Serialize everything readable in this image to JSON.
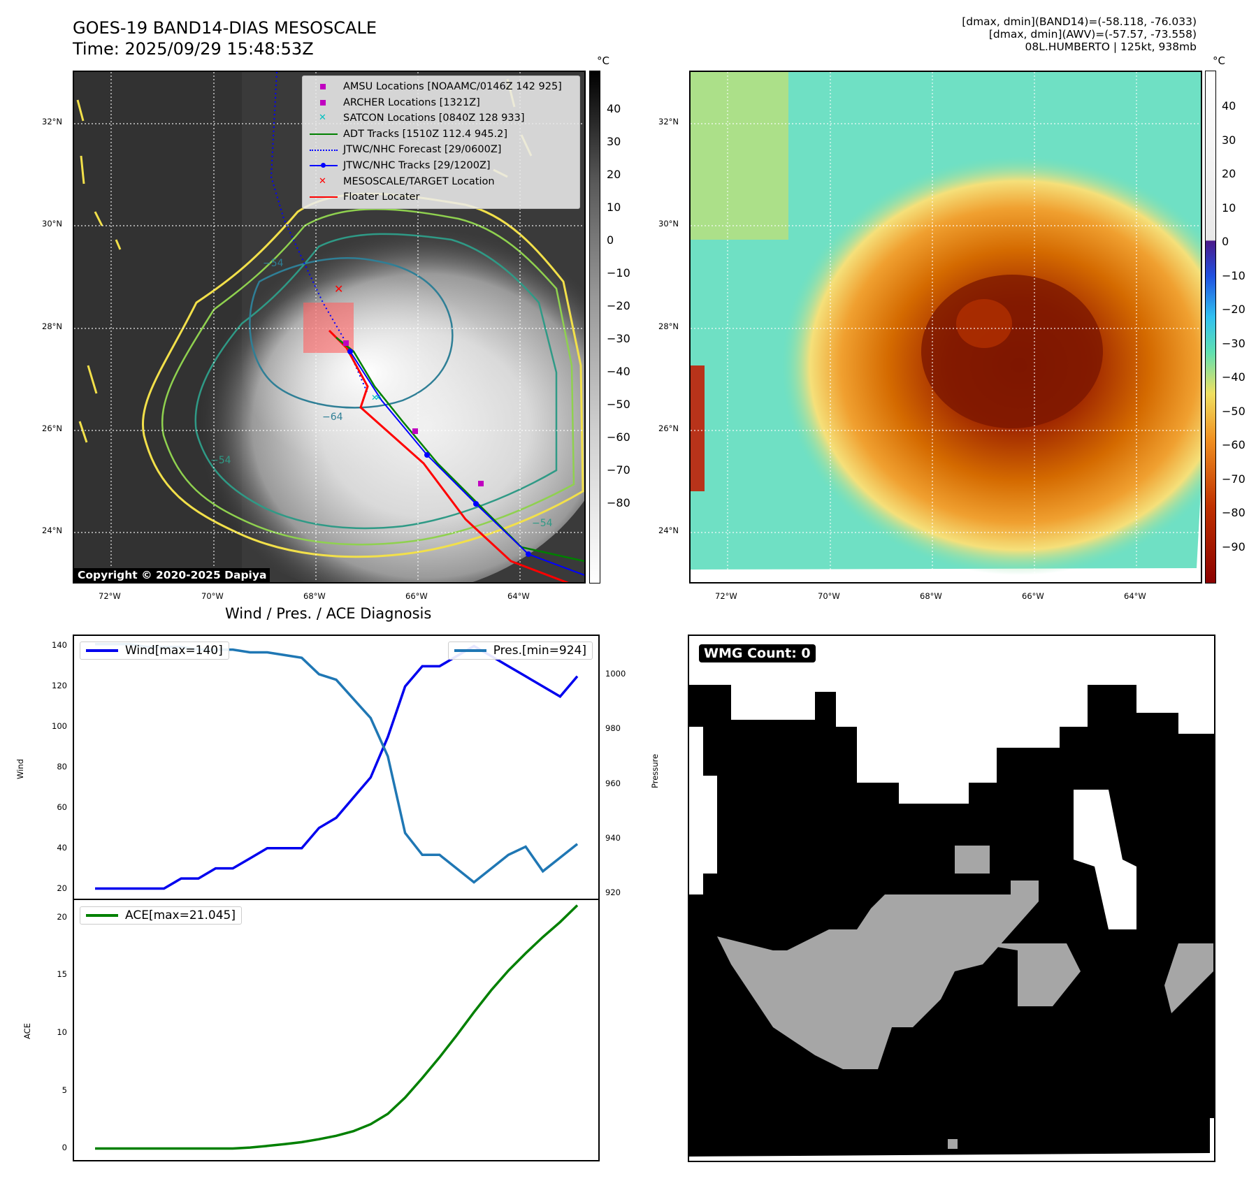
{
  "header": {
    "title_line1": "GOES-19 BAND14-DIAS MESOSCALE",
    "title_line2": "Time: 2025/09/29 15:48:53Z",
    "info_line1": "[dmax, dmin](BAND14)=(-58.118, -76.033)",
    "info_line2": "[dmax, dmin](AWV)=(-57.57, -73.558)",
    "info_line3": "08L.HUMBERTO | 125kt, 938mb"
  },
  "map_axes": {
    "lon_labels": [
      "72°W",
      "70°W",
      "68°W",
      "66°W",
      "64°W"
    ],
    "lat_labels": [
      "32°N",
      "30°N",
      "28°N",
      "26°N",
      "24°N"
    ]
  },
  "ir_panel": {
    "colorbar_unit": "°C",
    "colorbar_ticks": [
      "40",
      "30",
      "20",
      "10",
      "0",
      "−10",
      "−20",
      "−30",
      "−40",
      "−50",
      "−60",
      "−70",
      "−80"
    ],
    "copyright": "Copyright © 2020-2025 Dapiya",
    "contour_labels": [
      "−54",
      "−64",
      "−54",
      "−54"
    ],
    "legend": [
      {
        "label": "AMSU Locations [NOAAMC/0146Z 142 925]",
        "symbol": "square",
        "color": "#c000c0"
      },
      {
        "label": "ARCHER Locations [1321Z]",
        "symbol": "square",
        "color": "#c000c0"
      },
      {
        "label": "SATCON Locations [0840Z 128 933]",
        "symbol": "x",
        "color": "#00c0c0"
      },
      {
        "label": "ADT Tracks [1510Z 112.4 945.2]",
        "symbol": "line",
        "color": "#008000"
      },
      {
        "label": "JTWC/NHC Forecast [29/0600Z]",
        "symbol": "dotted",
        "color": "#0000ff"
      },
      {
        "label": "JTWC/NHC Tracks [29/1200Z]",
        "symbol": "line-dot",
        "color": "#0000ff"
      },
      {
        "label": "MESOSCALE/TARGET Location",
        "symbol": "x",
        "color": "#ff0000"
      },
      {
        "label": "Floater Locater",
        "symbol": "line",
        "color": "#ff0000"
      }
    ]
  },
  "awv_panel": {
    "colorbar_unit": "°C",
    "colorbar_ticks": [
      "40",
      "30",
      "20",
      "10",
      "0",
      "−10",
      "−20",
      "−30",
      "−40",
      "−50",
      "−60",
      "−70",
      "−80",
      "−90"
    ]
  },
  "diag_panel": {
    "title": "Wind / Pres. / ACE Diagnosis",
    "wind_ylabel": "Wind",
    "pres_ylabel": "Pressure",
    "ace_ylabel": "ACE",
    "wind_legend": "Wind[max=140]",
    "pres_legend": "Pres.[min=924]",
    "ace_legend": "ACE[max=21.045]",
    "wind_ticks": [
      "140",
      "120",
      "100",
      "80",
      "60",
      "40",
      "20"
    ],
    "pres_ticks": [
      "1000",
      "980",
      "960",
      "940",
      "920"
    ],
    "ace_ticks": [
      "20",
      "15",
      "10",
      "5",
      "0"
    ],
    "colors": {
      "wind": "#0000ee",
      "pres": "#1f77b4",
      "ace": "#008000"
    }
  },
  "wmg_panel": {
    "badge": "WMG Count: 0"
  },
  "chart_data": [
    {
      "type": "line",
      "title": "Wind / Pres. / ACE Diagnosis",
      "ylabel": "Wind",
      "ylim": [
        15,
        145
      ],
      "series": [
        {
          "name": "Wind[max=140]",
          "values": [
            20,
            20,
            20,
            20,
            20,
            25,
            25,
            30,
            30,
            35,
            40,
            40,
            40,
            50,
            55,
            65,
            75,
            95,
            120,
            130,
            130,
            135,
            140,
            135,
            130,
            125,
            120,
            115,
            125
          ]
        }
      ]
    },
    {
      "type": "line",
      "ylabel": "Pressure",
      "ylim": [
        918,
        1014
      ],
      "series": [
        {
          "name": "Pres.[min=924]",
          "values": [
            1011,
            1011,
            1011,
            1010,
            1010,
            1010,
            1009,
            1009,
            1009,
            1008,
            1008,
            1007,
            1006,
            1000,
            998,
            991,
            984,
            970,
            942,
            934,
            934,
            929,
            924,
            929,
            934,
            937,
            928,
            933,
            938
          ]
        }
      ]
    },
    {
      "type": "line",
      "ylabel": "ACE",
      "ylim": [
        -1,
        21.5
      ],
      "series": [
        {
          "name": "ACE[max=21.045]",
          "values": [
            0,
            0,
            0,
            0,
            0,
            0,
            0,
            0,
            0,
            0.08,
            0.22,
            0.38,
            0.55,
            0.8,
            1.1,
            1.5,
            2.1,
            3.0,
            4.4,
            6.1,
            7.9,
            9.8,
            11.8,
            13.7,
            15.4,
            16.9,
            18.3,
            19.6,
            21.045
          ]
        }
      ]
    }
  ]
}
